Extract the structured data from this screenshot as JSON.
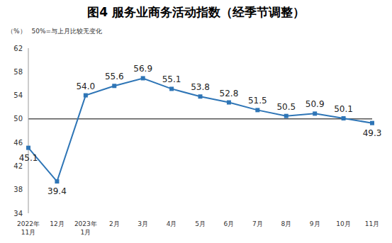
{
  "chart_data": {
    "type": "line",
    "title": "图4 服务业商务活动指数（经季节调整）",
    "y_label": "（%）",
    "annotation": {
      "text": "50%=与上月比较无变化",
      "y": 50
    },
    "categories": [
      "2022年\n11月",
      "12月",
      "2023年\n1月",
      "2月",
      "3月",
      "4月",
      "5月",
      "6月",
      "7月",
      "8月",
      "9月",
      "10月",
      "11月"
    ],
    "values": [
      45.1,
      39.4,
      54.0,
      55.6,
      56.9,
      55.1,
      53.8,
      52.8,
      51.5,
      50.5,
      50.9,
      50.1,
      49.3
    ],
    "value_labels": [
      "45.1",
      "39.4",
      "54.0",
      "55.6",
      "56.9",
      "55.1",
      "53.8",
      "52.8",
      "51.5",
      "50.5",
      "50.9",
      "50.1",
      "49.3"
    ],
    "color": "#2e75b6",
    "marker": "square",
    "ylim": [
      34,
      62
    ],
    "yticks": [
      34,
      38,
      42,
      46,
      50,
      54,
      58,
      62
    ],
    "grid": false,
    "data_labels": true
  }
}
